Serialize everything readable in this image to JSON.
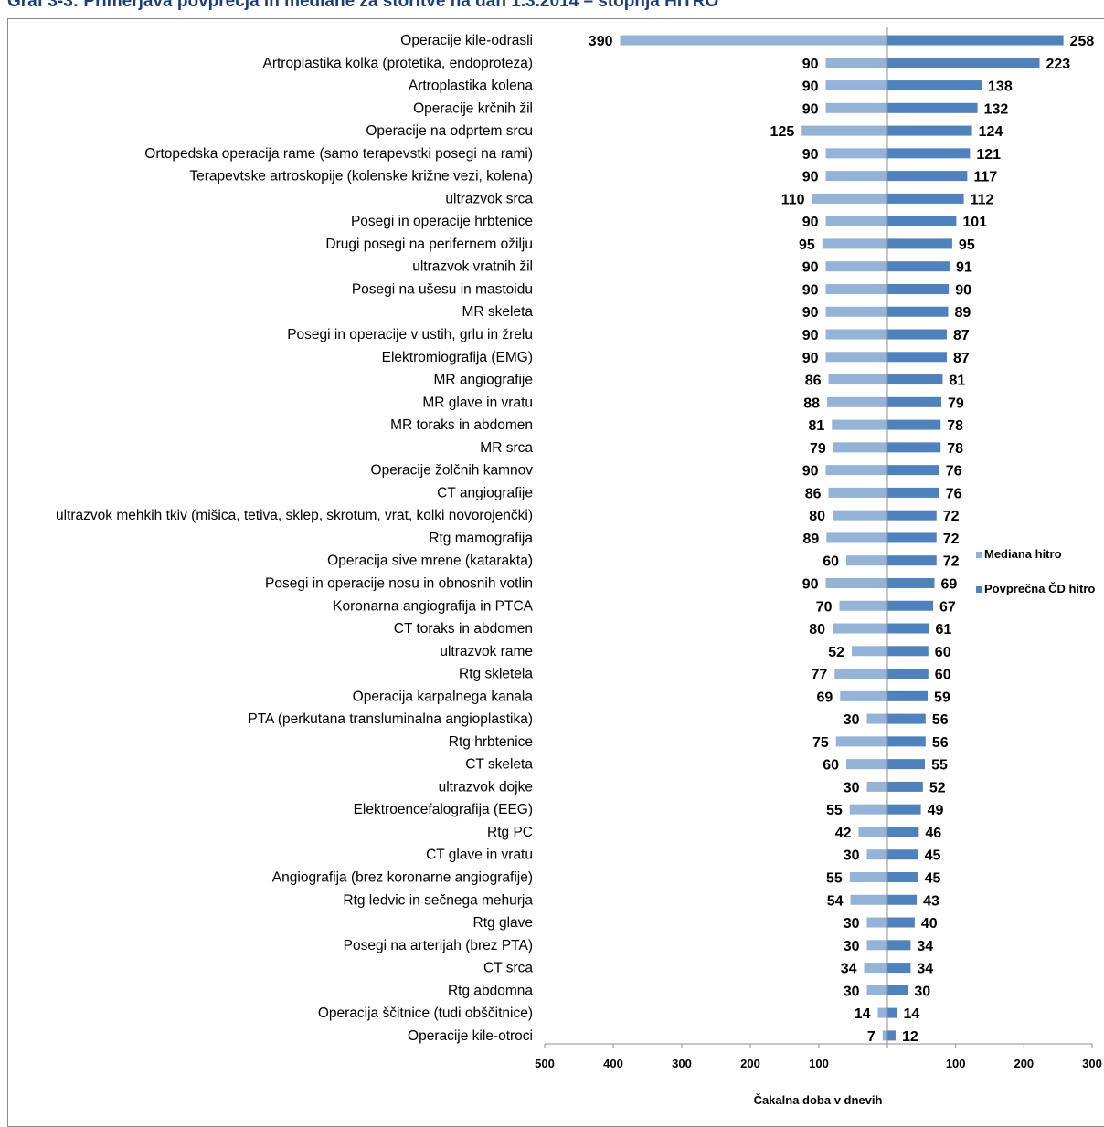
{
  "title": "Graf 3-3: Primerjava povprečja in mediane za storitve na dan 1.3.2014 – stopnja HITRO",
  "chart_data": {
    "type": "bar",
    "orientation": "horizontal",
    "layout": "back-to-back",
    "xlabel": "Čakalna doba v dnevih",
    "categories": [
      "Operacije kile-odrasli",
      "Artroplastika kolka (protetika, endoproteza)",
      "Artroplastika kolena",
      "Operacije krčnih žil",
      "Operacije na odprtem srcu",
      "Ortopedska operacija rame (samo terapevstki posegi na rami)",
      "Terapevtske artroskopije (kolenske križne vezi, kolena)",
      "ultrazvok srca",
      "Posegi in operacije hrbtenice",
      "Drugi posegi na perifernem ožilju",
      "ultrazvok vratnih žil",
      "Posegi na ušesu in mastoidu",
      "MR skeleta",
      "Posegi in operacije v ustih, grlu in žrelu",
      "Elektromiografija (EMG)",
      "MR angiografije",
      "MR glave in vratu",
      "MR toraks in abdomen",
      "MR srca",
      "Operacije žolčnih kamnov",
      "CT angiografije",
      "ultrazvok mehkih tkiv (mišica, tetiva, sklep, skrotum, vrat, kolki novorojenčki)",
      "Rtg mamografija",
      "Operacija sive mrene (katarakta)",
      "Posegi in operacije nosu in obnosnih votlin",
      "Koronarna angiografija in PTCA",
      "CT toraks in abdomen",
      "ultrazvok rame",
      "Rtg skletela",
      "Operacija karpalnega kanala",
      "PTA (perkutana transluminalna angioplastika)",
      "Rtg hrbtenice",
      "CT skeleta",
      "ultrazvok dojke",
      "Elektroencefalografija (EEG)",
      "Rtg PC",
      "CT glave in vratu",
      "Angiografija (brez koronarne angiografije)",
      "Rtg ledvic in sečnega mehurja",
      "Rtg glave",
      "Posegi na arterijah (brez PTA)",
      "CT srca",
      "Rtg abdomna",
      "Operacija ščitnice (tudi obščitnice)",
      "Operacije kile-otroci"
    ],
    "series": [
      {
        "name": "Mediana hitro",
        "color": "#95b3d7",
        "side": "left",
        "values": [
          390,
          90,
          90,
          90,
          125,
          90,
          90,
          110,
          90,
          95,
          90,
          90,
          90,
          90,
          90,
          86,
          88,
          81,
          79,
          90,
          86,
          80,
          89,
          60,
          90,
          70,
          80,
          52,
          77,
          69,
          30,
          75,
          60,
          30,
          55,
          42,
          30,
          55,
          54,
          30,
          30,
          34,
          30,
          14,
          7
        ]
      },
      {
        "name": "Povprečna ČD hitro",
        "color": "#4f81bd",
        "side": "right",
        "values": [
          258,
          223,
          138,
          132,
          124,
          121,
          117,
          112,
          101,
          95,
          91,
          90,
          89,
          87,
          87,
          81,
          79,
          78,
          78,
          76,
          76,
          72,
          72,
          72,
          69,
          67,
          61,
          60,
          60,
          59,
          56,
          56,
          55,
          52,
          49,
          46,
          45,
          45,
          43,
          40,
          34,
          34,
          30,
          14,
          12
        ]
      }
    ],
    "left_axis": {
      "range": [
        0,
        500
      ],
      "ticks": [
        500,
        400,
        300,
        200,
        100
      ]
    },
    "right_axis": {
      "range": [
        0,
        300
      ],
      "ticks": [
        100,
        200,
        300
      ]
    },
    "legend_position": "right",
    "grid": false
  }
}
